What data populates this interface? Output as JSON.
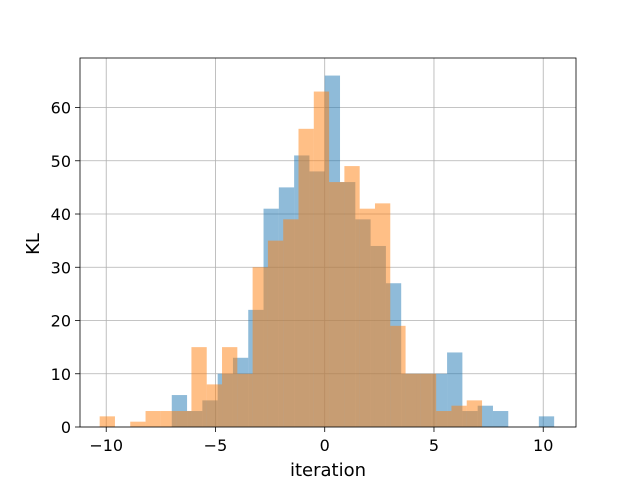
{
  "chart_data": {
    "type": "bar",
    "xlabel": "iteration",
    "ylabel": "KL",
    "xlim": [
      -11.2,
      11.5
    ],
    "ylim": [
      0,
      69.3
    ],
    "grid": true,
    "xticks": [
      -10,
      -5,
      0,
      5,
      10
    ],
    "xtick_labels": [
      "−10",
      "−5",
      "0",
      "5",
      "10"
    ],
    "yticks": [
      0,
      10,
      20,
      30,
      40,
      50,
      60
    ],
    "ytick_labels": [
      "0",
      "10",
      "20",
      "30",
      "40",
      "50",
      "60"
    ],
    "colors": {
      "series_a": "#1f77b4",
      "series_b": "#ff7f0e",
      "axes": "#000000",
      "grid": "#b0b0b0"
    },
    "opacity": 0.5,
    "series": [
      {
        "bins": [
          -7.0,
          -6.3,
          -5.6,
          -4.9,
          -4.2,
          -3.5,
          -2.8,
          -2.1,
          -1.4,
          -0.7,
          0.0,
          0.7,
          1.4,
          2.1,
          2.8,
          3.5,
          4.2,
          4.9,
          5.6,
          6.3,
          7.0,
          7.7,
          8.4,
          9.1,
          9.8,
          10.5
        ],
        "values": [
          6,
          3,
          5,
          10,
          13,
          22,
          41,
          45,
          51,
          48,
          66,
          46,
          39,
          34,
          27,
          10,
          10,
          10,
          14,
          3,
          4,
          3,
          0,
          0,
          2
        ]
      },
      {
        "bins": [
          -10.3,
          -9.6,
          -8.9,
          -8.2,
          -7.5,
          -6.8,
          -6.1,
          -5.4,
          -4.7,
          -4.0,
          -3.3,
          -2.6,
          -1.9,
          -1.2,
          -0.5,
          0.2,
          0.9,
          1.6,
          2.3,
          3.0,
          3.7,
          4.4,
          5.1,
          5.8,
          6.5,
          7.2
        ],
        "values": [
          2,
          0,
          1,
          3,
          3,
          3,
          15,
          8,
          15,
          10,
          30,
          35,
          39,
          56,
          63,
          46,
          49,
          41,
          42,
          19,
          10,
          10,
          3,
          4,
          5
        ]
      }
    ]
  }
}
